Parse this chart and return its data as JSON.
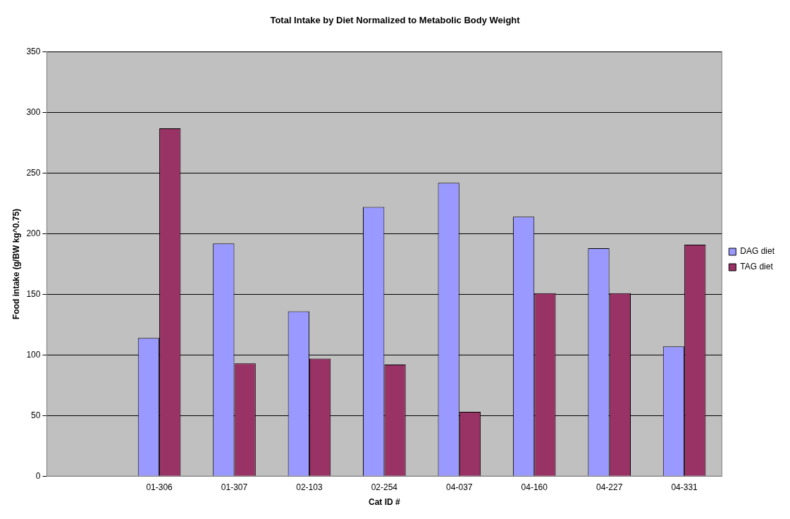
{
  "chart_data": {
    "type": "bar",
    "title": "Total Intake by Diet Normalized to Metabolic Body Weight",
    "xlabel": "Cat ID #",
    "ylabel": "Food intake (g/BW kg^0.75)",
    "categories": [
      null,
      "01-306",
      "01-307",
      "02-103",
      "02-254",
      "04-037",
      "04-160",
      "04-227",
      "04-331"
    ],
    "series": [
      {
        "name": "DAG diet",
        "color": "#9999ff",
        "values": [
          null,
          114,
          192,
          136,
          222,
          242,
          214,
          188,
          107
        ]
      },
      {
        "name": "TAG diet",
        "color": "#993366",
        "values": [
          null,
          287,
          93,
          97,
          92,
          53,
          151,
          151,
          191
        ]
      }
    ],
    "ylim": [
      0,
      350
    ],
    "yticks": [
      0,
      50,
      100,
      150,
      200,
      250,
      300,
      350
    ],
    "grid": "y",
    "legend": "right"
  }
}
